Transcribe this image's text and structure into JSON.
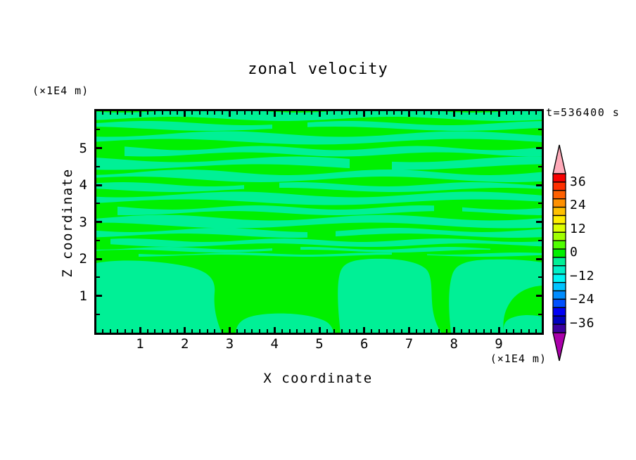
{
  "title": "zonal velocity",
  "time_label": "t=536400 s",
  "axis_factor_top": "(×1E4 m)",
  "axis_factor_bottom": "(×1E4 m)",
  "axes": {
    "x": {
      "label": "X coordinate",
      "majors": [
        1,
        2,
        3,
        4,
        5,
        6,
        7,
        8,
        9
      ],
      "minor_per_unit": 6,
      "range": [
        0,
        9.93
      ]
    },
    "z": {
      "label": "Z coordinate",
      "majors": [
        1,
        2,
        3,
        4,
        5
      ],
      "minors": [
        0.5,
        1.5,
        2.5,
        3.5,
        4.5,
        5.5
      ],
      "range": [
        0,
        6
      ]
    }
  },
  "colorbar": {
    "tick_labels": [
      "36",
      "24",
      "12",
      "0",
      "−12",
      "−24",
      "−36"
    ],
    "segment_colors": [
      "#f80000",
      "#ff3000",
      "#ff6000",
      "#ff9000",
      "#ffc000",
      "#ffee00",
      "#dcff00",
      "#a0ff00",
      "#50ff00",
      "#00f000",
      "#00f096",
      "#00f0c8",
      "#00f5f5",
      "#00c3ff",
      "#008cff",
      "#0050ff",
      "#0000f5",
      "#0000be",
      "#3c00a0"
    ],
    "top_arrow_color": "#ffaab9",
    "bottom_arrow_color": "#aa00aa"
  },
  "chart_data": {
    "type": "heatmap",
    "subtype": "filled-contour",
    "title": "zonal velocity",
    "xlabel": "X coordinate",
    "ylabel": "Z coordinate",
    "axis_units": "×1E4 m",
    "time_annotation": "t=536400 s",
    "x_range": [
      0,
      9.93
    ],
    "z_range": [
      0,
      6
    ],
    "colorbar_ticks": [
      36,
      24,
      12,
      0,
      -12,
      -24,
      -36
    ],
    "legend_position": "right",
    "grid": false,
    "note": "Field values stay near zero: only the two tone bands adjacent to 0 appear, as wavy horizontal stripes above z≈2 and large smooth blobs below z≈2.",
    "bands_visible": {
      "positive_band_color": "#00f000",
      "negative_band_color": "#00f096"
    },
    "contour": {
      "bg": "#00f000",
      "band": "#00f096",
      "stripes": [
        {
          "yc": 5,
          "h": 12,
          "amp": 3,
          "f": 0.004,
          "ph": 0.1,
          "segs": [
            [
              0,
              633
            ]
          ]
        },
        {
          "yc": 21,
          "h": 8,
          "amp": 3,
          "f": 0.0035,
          "ph": 0.5,
          "segs": [
            [
              0,
              250
            ],
            [
              300,
              633
            ]
          ]
        },
        {
          "yc": 38,
          "h": 11,
          "amp": 4,
          "f": 0.003,
          "ph": 0.2,
          "segs": [
            [
              0,
              633
            ]
          ]
        },
        {
          "yc": 57,
          "h": 9,
          "amp": 3,
          "f": 0.0045,
          "ph": 0.7,
          "segs": [
            [
              40,
              633
            ]
          ]
        },
        {
          "yc": 74,
          "h": 11,
          "amp": 4,
          "f": 0.003,
          "ph": 0.9,
          "segs": [
            [
              0,
              360
            ],
            [
              420,
              633
            ]
          ]
        },
        {
          "yc": 92,
          "h": 10,
          "amp": 4,
          "f": 0.0035,
          "ph": 0.3,
          "segs": [
            [
              0,
              633
            ]
          ]
        },
        {
          "yc": 108,
          "h": 8,
          "amp": 3,
          "f": 0.004,
          "ph": 0.6,
          "segs": [
            [
              0,
              210
            ],
            [
              260,
              633
            ]
          ]
        },
        {
          "yc": 124,
          "h": 11,
          "amp": 4,
          "f": 0.003,
          "ph": 0.15,
          "segs": [
            [
              0,
              633
            ]
          ]
        },
        {
          "yc": 141,
          "h": 8,
          "amp": 3,
          "f": 0.0042,
          "ph": 0.8,
          "segs": [
            [
              30,
              480
            ],
            [
              520,
              633
            ]
          ]
        },
        {
          "yc": 157,
          "h": 11,
          "amp": 4,
          "f": 0.0032,
          "ph": 0.45,
          "segs": [
            [
              0,
              633
            ]
          ]
        },
        {
          "yc": 173,
          "h": 8,
          "amp": 3,
          "f": 0.004,
          "ph": 0.05,
          "segs": [
            [
              0,
              300
            ],
            [
              340,
              633
            ]
          ]
        },
        {
          "yc": 187,
          "h": 7,
          "amp": 2.5,
          "f": 0.0045,
          "ph": 0.55,
          "segs": [
            [
              20,
              633
            ]
          ]
        },
        {
          "yc": 197,
          "h": 4,
          "amp": 2,
          "f": 0.005,
          "ph": 0.25,
          "segs": [
            [
              0,
              250
            ],
            [
              290,
              560
            ]
          ]
        },
        {
          "yc": 204,
          "h": 3,
          "amp": 1.5,
          "f": 0.005,
          "ph": 0.75,
          "segs": [
            [
              60,
              420
            ],
            [
              470,
              633
            ]
          ]
        }
      ],
      "blobs": [
        "M0,216 C30,210 85,212 125,220 C158,226 170,238 168,258 C166,282 172,300 178,315 L0,315 Z",
        "M198,315 C200,298 212,292 236,289 C272,285 306,290 322,297 C332,301 336,308 337,315 Z",
        "M347,315 C343,280 341,244 347,228 C352,214 368,211 392,210 C430,209 456,214 468,224 C477,232 476,252 477,270 C478,292 484,305 490,315 Z",
        "M504,315 C500,280 500,250 506,232 C511,216 530,212 556,211 C590,210 615,212 633,215 L633,248 C610,250 596,260 588,272 C580,284 577,298 579,315 Z",
        "M579,315 C578,305 580,298 590,294 C605,288 622,290 633,292 L633,315 Z"
      ]
    }
  }
}
